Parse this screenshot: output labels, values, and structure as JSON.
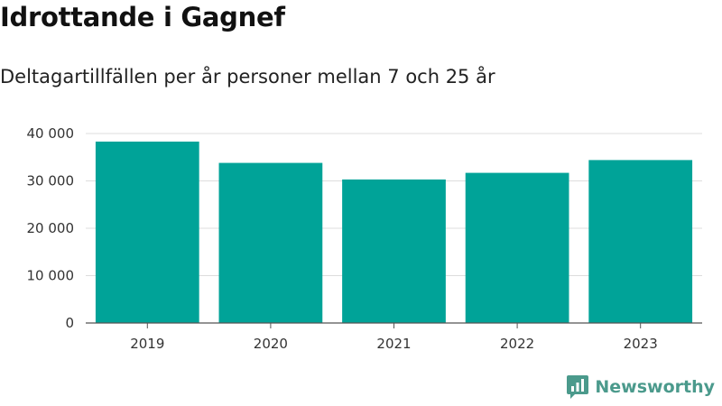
{
  "title": "Idrottande i Gagnef",
  "subtitle": "Deltagartillfällen per år personer mellan 7 och 25 år",
  "brand": {
    "name": "Newsworthy",
    "icon": "newsworthy-logo-icon",
    "color": "#4b9a8c"
  },
  "chart_data": {
    "type": "bar",
    "categories": [
      "2019",
      "2020",
      "2021",
      "2022",
      "2023"
    ],
    "series": [
      {
        "values": [
          38300,
          33800,
          30300,
          31700,
          34400
        ]
      }
    ],
    "ylim": [
      0,
      40000
    ],
    "yticks": [
      0,
      10000,
      20000,
      30000,
      40000
    ],
    "ytick_labels": [
      "0",
      "10 000",
      "20 000",
      "30 000",
      "40 000"
    ],
    "grid": true,
    "legend": "none",
    "bar_color": "#00a398",
    "grid_color": "#dddddd",
    "axis_color": "#555555",
    "xlabel": "",
    "ylabel": ""
  }
}
